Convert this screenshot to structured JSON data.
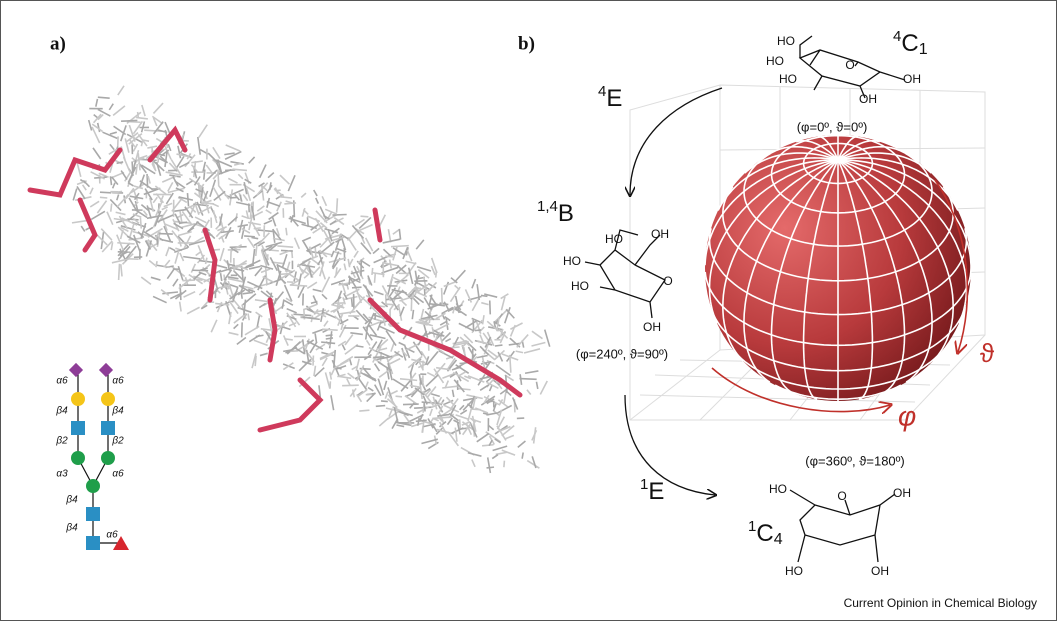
{
  "panel_a": {
    "label": "a)",
    "glycan_linkages": [
      "α6",
      "α6",
      "β4",
      "β4",
      "β2",
      "β2",
      "α3",
      "α6",
      "β4",
      "β4",
      "α6"
    ]
  },
  "panel_b": {
    "label": "b)",
    "conformers": [
      {
        "name": {
          "sup": "4",
          "base": "C",
          "sub": "1"
        },
        "coords": "(φ=0º, ϑ=0º)",
        "atoms": [
          "HO",
          "HO",
          "HO",
          "O",
          "OH",
          "OH"
        ]
      },
      {
        "name": {
          "sup": "1,4",
          "base": "B"
        },
        "coords": "(φ=240º, ϑ=90º)",
        "atoms": [
          "OH",
          "HO",
          "HO",
          "HO",
          "O",
          "OH"
        ]
      },
      {
        "name": {
          "sup": "1",
          "base": "C",
          "sub": "4"
        },
        "atoms": [
          "HO",
          "O",
          "OH",
          "HO",
          "OH"
        ]
      }
    ],
    "sphere_coords": "(φ=360º, ϑ=180º)",
    "transitions": [
      {
        "sup": "4",
        "base": "E"
      },
      {
        "sup": "1",
        "base": "E"
      }
    ],
    "axes": {
      "phi": "φ",
      "theta": "ϑ"
    }
  },
  "footer": "Current Opinion in Chemical Biology"
}
